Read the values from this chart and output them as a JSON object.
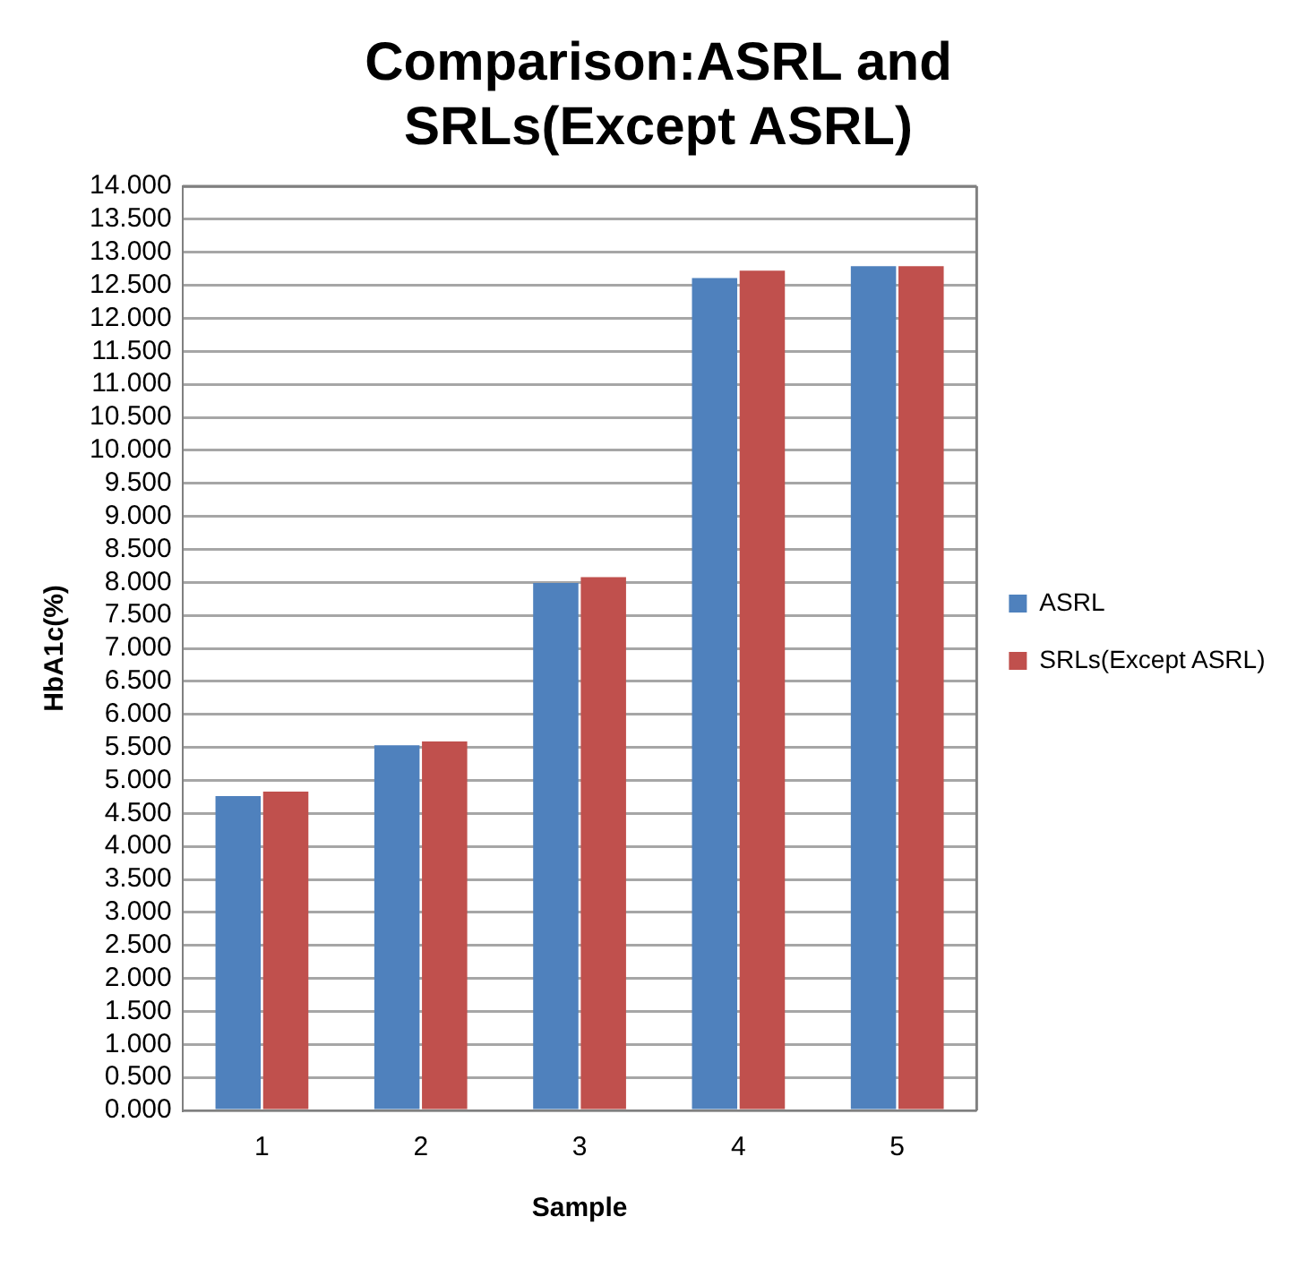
{
  "chart_data": {
    "type": "bar",
    "title": [
      "Comparison:ASRL and",
      "SRLs(Except ASRL)"
    ],
    "xlabel": "Sample",
    "ylabel": "HbA1c(%)",
    "categories": [
      "1",
      "2",
      "3",
      "4",
      "5"
    ],
    "series": [
      {
        "name": "ASRL",
        "color": "#4f81bd",
        "values": [
          4.76,
          5.53,
          7.99,
          12.61,
          12.79
        ]
      },
      {
        "name": "SRLs(Except ASRL)",
        "color": "#c0504d",
        "values": [
          4.83,
          5.59,
          8.08,
          12.72,
          12.79
        ]
      }
    ],
    "ylim": [
      0,
      14
    ],
    "yticks": [
      {
        "value": 0,
        "label": "0.000"
      },
      {
        "value": 0.5,
        "label": "0.500"
      },
      {
        "value": 1,
        "label": "1.000"
      },
      {
        "value": 1.5,
        "label": "1.500"
      },
      {
        "value": 2,
        "label": "2.000"
      },
      {
        "value": 2.5,
        "label": "2.500"
      },
      {
        "value": 3,
        "label": "3.000"
      },
      {
        "value": 3.5,
        "label": "3.500"
      },
      {
        "value": 4,
        "label": "4.000"
      },
      {
        "value": 4.5,
        "label": "4.500"
      },
      {
        "value": 5,
        "label": "5.000"
      },
      {
        "value": 5.5,
        "label": "5.500"
      },
      {
        "value": 6,
        "label": "6.000"
      },
      {
        "value": 6.5,
        "label": "6.500"
      },
      {
        "value": 7,
        "label": "7.000"
      },
      {
        "value": 7.5,
        "label": "7.500"
      },
      {
        "value": 8,
        "label": "8.000"
      },
      {
        "value": 8.5,
        "label": "8.500"
      },
      {
        "value": 9,
        "label": "9.000"
      },
      {
        "value": 9.5,
        "label": "9.500"
      },
      {
        "value": 10,
        "label": "10.000"
      },
      {
        "value": 10.5,
        "label": "10.500"
      },
      {
        "value": 11,
        "label": "11.000"
      },
      {
        "value": 11.5,
        "label": "11.500"
      },
      {
        "value": 12,
        "label": "12.000"
      },
      {
        "value": 12.5,
        "label": "12.500"
      },
      {
        "value": 13,
        "label": "13.000"
      },
      {
        "value": 13.5,
        "label": "13.500"
      },
      {
        "value": 14,
        "label": "14.000"
      }
    ],
    "grid": "y",
    "legend": "right"
  }
}
